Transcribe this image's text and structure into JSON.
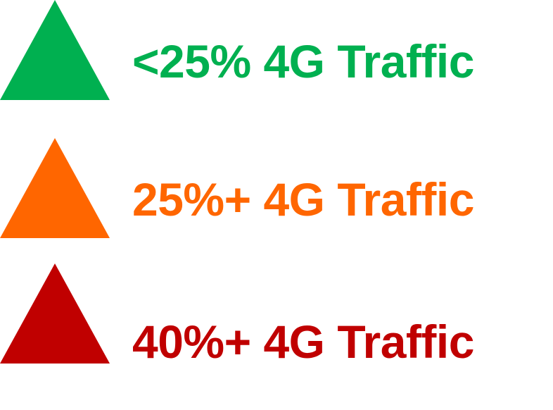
{
  "legend": {
    "items": [
      {
        "label": "<25% 4G Traffic",
        "color": "#00b050",
        "icon": "triangle-up-icon"
      },
      {
        "label": "25%+ 4G Traffic",
        "color": "#ff6600",
        "icon": "triangle-up-icon"
      },
      {
        "label": "40%+ 4G Traffic",
        "color": "#c00000",
        "icon": "triangle-up-icon"
      }
    ]
  }
}
